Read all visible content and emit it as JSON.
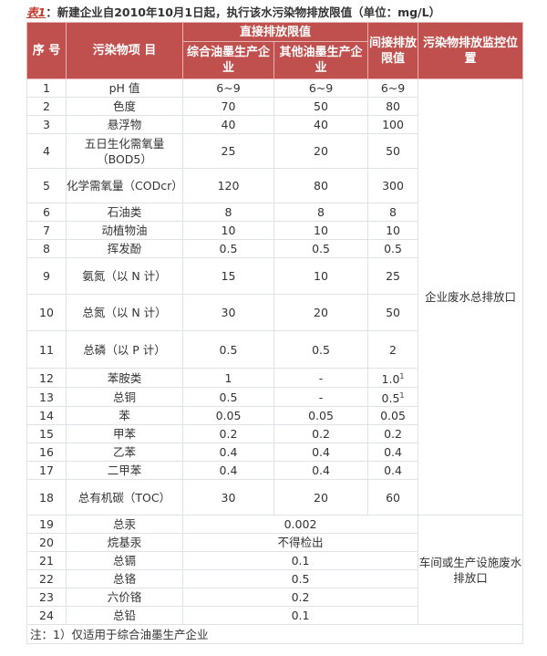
{
  "title": {
    "tag": "表1",
    "text": "：新建企业自2010年10月1日起，执行该水污染物排放限值（单位：mg/L）"
  },
  "header": {
    "seq": "序 号",
    "item": "污染物项 目",
    "direct": "直接排放限值",
    "direct_a": "综合油墨生产企业",
    "direct_b": "其他油墨生产企业",
    "indirect": "间接排放限值",
    "location": "污染物排放监控位置"
  },
  "rows": [
    {
      "n": "1",
      "item": "pH 值",
      "a": "6~9",
      "b": "6~9",
      "c": "6~9"
    },
    {
      "n": "2",
      "item": "色度",
      "a": "70",
      "b": "50",
      "c": "80"
    },
    {
      "n": "3",
      "item": "悬浮物",
      "a": "40",
      "b": "40",
      "c": "100"
    },
    {
      "n": "4",
      "item": "五日生化需氧量（BOD5）",
      "a": "25",
      "b": "20",
      "c": "50"
    },
    {
      "n": "5",
      "item": "化学需氧量（CODcr）",
      "a": "120",
      "b": "80",
      "c": "300"
    },
    {
      "n": "6",
      "item": "石油类",
      "a": "8",
      "b": "8",
      "c": "8"
    },
    {
      "n": "7",
      "item": "动植物油",
      "a": "10",
      "b": "10",
      "c": "10"
    },
    {
      "n": "8",
      "item": "挥发酚",
      "a": "0.5",
      "b": "0.5",
      "c": "0.5"
    },
    {
      "n": "9",
      "item": "氨氮（以 N 计）",
      "a": "15",
      "b": "10",
      "c": "25"
    },
    {
      "n": "10",
      "item": "总氮（以 N 计）",
      "a": "30",
      "b": "20",
      "c": "50"
    },
    {
      "n": "11",
      "item": "总磷（以 P 计）",
      "a": "0.5",
      "b": "0.5",
      "c": "2"
    },
    {
      "n": "12",
      "item": "苯胺类",
      "a": "1",
      "b": "-",
      "c": "1.0",
      "sup": "1"
    },
    {
      "n": "13",
      "item": "总铜",
      "a": "0.5",
      "b": "-",
      "c": "0.5",
      "sup": "1"
    },
    {
      "n": "14",
      "item": "苯",
      "a": "0.05",
      "b": "0.05",
      "c": "0.05"
    },
    {
      "n": "15",
      "item": "甲苯",
      "a": "0.2",
      "b": "0.2",
      "c": "0.2"
    },
    {
      "n": "16",
      "item": "乙苯",
      "a": "0.4",
      "b": "0.4",
      "c": "0.4"
    },
    {
      "n": "17",
      "item": "二甲苯",
      "a": "0.4",
      "b": "0.4",
      "c": "0.4"
    },
    {
      "n": "18",
      "item": "总有机碳（TOC）",
      "a": "30",
      "b": "20",
      "c": "60"
    }
  ],
  "location_1": "企业废水总排放口",
  "rows2": [
    {
      "n": "19",
      "item": "总汞",
      "v": "0.002"
    },
    {
      "n": "20",
      "item": "烷基汞",
      "v": "不得检出"
    },
    {
      "n": "21",
      "item": "总镉",
      "v": "0.1"
    },
    {
      "n": "22",
      "item": "总铬",
      "v": "0.5"
    },
    {
      "n": "23",
      "item": "六价铬",
      "v": "0.2"
    },
    {
      "n": "24",
      "item": "总铅",
      "v": "0.1"
    }
  ],
  "location_2": "车间或生产设施废水排放口",
  "note": "注：1）仅适用于综合油墨生产企业",
  "colors": {
    "header": "#c0504d",
    "accent": "#c0392b"
  }
}
